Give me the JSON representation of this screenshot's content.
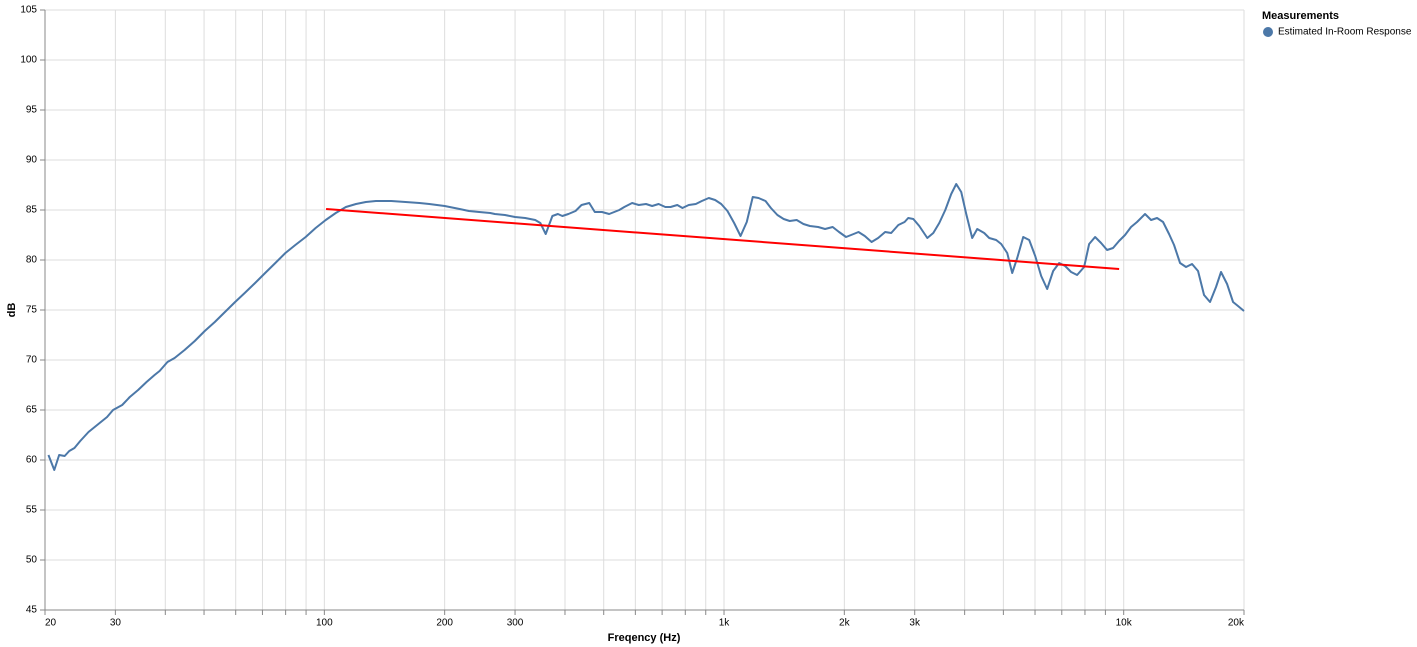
{
  "chart_data": {
    "type": "line",
    "x_label": "Freqency (Hz)",
    "y_label": "dB",
    "legend_title": "Measurements",
    "legend": "top-right",
    "xscale": "log",
    "grid": true,
    "xlim": [
      20,
      20000
    ],
    "ylim": [
      45,
      105
    ],
    "xticks": [
      20,
      30,
      100,
      200,
      300,
      {
        "value": 1000,
        "label": "1k"
      },
      {
        "value": 2000,
        "label": "2k"
      },
      {
        "value": 3000,
        "label": "3k"
      },
      {
        "value": 10000,
        "label": "10k"
      },
      {
        "value": 20000,
        "label": "20k"
      }
    ],
    "xminorticks": [
      40,
      50,
      60,
      70,
      80,
      90,
      400,
      500,
      600,
      700,
      800,
      900,
      4000,
      5000,
      6000,
      7000,
      8000,
      9000
    ],
    "yticks": [
      45,
      50,
      55,
      60,
      65,
      70,
      75,
      80,
      85,
      90,
      95,
      100,
      105
    ],
    "x": [
      20.4,
      21.1,
      21.7,
      22.4,
      23.0,
      23.7,
      24.5,
      25.7,
      27.4,
      28.6,
      29.6,
      31.2,
      32.6,
      34.2,
      35.9,
      37.6,
      38.7,
      40.5,
      42.2,
      44.7,
      47.4,
      50.2,
      53.2,
      56.4,
      59.8,
      63.2,
      67.1,
      71.1,
      75.4,
      79.9,
      84.6,
      89.8,
      95.1,
      100.8,
      106.8,
      113.2,
      120,
      127,
      134.6,
      147,
      159.6,
      173,
      183,
      200,
      218,
      230,
      244,
      260,
      267,
      283,
      300,
      318,
      337,
      347,
      358,
      372,
      384,
      394,
      408,
      425,
      440,
      460,
      475,
      495,
      516,
      547,
      563,
      589,
      612,
      638,
      661,
      686,
      713,
      735,
      764,
      787,
      816,
      850,
      880,
      916,
      950,
      984,
      1020,
      1060,
      1100,
      1140,
      1180,
      1220,
      1270,
      1310,
      1360,
      1410,
      1460,
      1520,
      1580,
      1640,
      1720,
      1790,
      1870,
      1940,
      2020,
      2110,
      2170,
      2250,
      2340,
      2430,
      2530,
      2620,
      2730,
      2830,
      2890,
      2976,
      3080,
      3226,
      3339,
      3456,
      3578,
      3702,
      3811,
      3922,
      4037,
      4178,
      4301,
      4477,
      4608,
      4797,
      4938,
      5112,
      5261,
      5415,
      5606,
      5802,
      6006,
      6217,
      6435,
      6661,
      6895,
      7136,
      7387,
      7646,
      7962,
      8195,
      8482,
      8779,
      9087,
      9406,
      9736,
      10079,
      10432,
      10799,
      11309,
      11710,
      12120,
      12546,
      12987,
      13366,
      13836,
      14322,
      14825,
      15347,
      15887,
      16444,
      17022,
      17520,
      18142,
      18778,
      19320,
      20000
    ],
    "series": [
      {
        "name": "Estimated In-Room Response",
        "color": "#4c78a8",
        "values": [
          60.5,
          59,
          60.5,
          60.4,
          60.9,
          61.2,
          61.9,
          62.8,
          63.7,
          64.3,
          65,
          65.5,
          66.3,
          67,
          67.8,
          68.5,
          68.9,
          69.8,
          70.2,
          71,
          71.9,
          72.9,
          73.8,
          74.8,
          75.8,
          76.7,
          77.7,
          78.7,
          79.7,
          80.7,
          81.5,
          82.3,
          83.2,
          84,
          84.7,
          85.3,
          85.6,
          85.8,
          85.9,
          85.9,
          85.8,
          85.7,
          85.6,
          85.4,
          85.1,
          84.9,
          84.8,
          84.7,
          84.6,
          84.5,
          84.3,
          84.2,
          84.0,
          83.7,
          82.6,
          84.4,
          84.6,
          84.4,
          84.6,
          84.9,
          85.5,
          85.7,
          84.8,
          84.8,
          84.6,
          85.0,
          85.3,
          85.7,
          85.5,
          85.6,
          85.4,
          85.6,
          85.3,
          85.3,
          85.5,
          85.2,
          85.5,
          85.6,
          85.9,
          86.2,
          86.0,
          85.6,
          84.9,
          83.7,
          82.4,
          83.8,
          86.3,
          86.2,
          85.9,
          85.2,
          84.5,
          84.1,
          83.9,
          84.0,
          83.6,
          83.4,
          83.3,
          83.1,
          83.3,
          82.8,
          82.3,
          82.6,
          82.8,
          82.4,
          81.8,
          82.2,
          82.8,
          82.7,
          83.5,
          83.8,
          84.2,
          84.1,
          83.4,
          82.2,
          82.7,
          83.7,
          85.0,
          86.6,
          87.6,
          86.8,
          84.6,
          82.2,
          83.1,
          82.7,
          82.2,
          82.0,
          81.6,
          80.7,
          78.7,
          80.2,
          82.3,
          82.0,
          80.4,
          78.4,
          77.1,
          78.9,
          79.7,
          79.4,
          78.8,
          78.5,
          79.3,
          81.6,
          82.3,
          81.7,
          81.0,
          81.2,
          81.9,
          82.5,
          83.3,
          83.8,
          84.6,
          84.0,
          84.2,
          83.8,
          82.6,
          81.5,
          79.7,
          79.3,
          79.6,
          78.9,
          76.5,
          75.8,
          77.3,
          78.8,
          77.6,
          75.8,
          75.4,
          74.9
        ]
      }
    ],
    "trendline": {
      "color": "#ff0000",
      "x": [
        101,
        9740
      ],
      "values": [
        85.1,
        79.1
      ]
    }
  }
}
